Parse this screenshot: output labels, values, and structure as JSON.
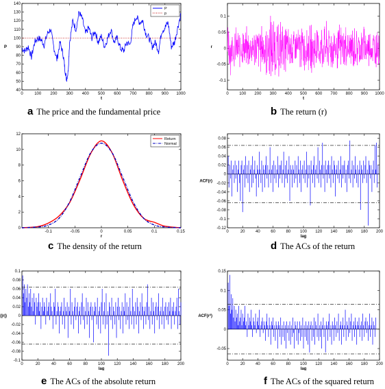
{
  "captions": {
    "a": {
      "letter": "a",
      "text": "The price and the fundamental price"
    },
    "b": {
      "letter": "b",
      "text": "The return (r)"
    },
    "c": {
      "letter": "c",
      "text": "The density of the return"
    },
    "d": {
      "letter": "d",
      "text": "The ACs of the return"
    },
    "e": {
      "letter": "e",
      "text": "The ACs of the absolute return"
    },
    "f": {
      "letter": "f",
      "text": "The ACs of the squared return"
    }
  },
  "chart_data": [
    {
      "id": "a",
      "type": "line",
      "xlabel": "t",
      "ylabel": "P",
      "xlim": [
        0,
        1000
      ],
      "ylim": [
        40,
        140
      ],
      "xticks": [
        "0",
        "100",
        "200",
        "300",
        "400",
        "500",
        "600",
        "700",
        "800",
        "900",
        "1000"
      ],
      "yticks": [
        "40",
        "50",
        "60",
        "70",
        "80",
        "90",
        "100",
        "110",
        "120",
        "130",
        "140"
      ],
      "legend": {
        "position": "top-right",
        "entries": [
          "P",
          "p"
        ]
      },
      "series": [
        {
          "name": "P",
          "style": "solid",
          "color": "#0000ff",
          "x": [
            0,
            20,
            40,
            60,
            80,
            100,
            120,
            140,
            160,
            180,
            200,
            220,
            240,
            260,
            270,
            280,
            290,
            300,
            320,
            340,
            360,
            380,
            400,
            420,
            440,
            460,
            480,
            500,
            520,
            540,
            560,
            580,
            600,
            620,
            640,
            660,
            680,
            700,
            720,
            740,
            760,
            780,
            800,
            820,
            840,
            860,
            880,
            900,
            920,
            940,
            960,
            980,
            1000
          ],
          "y": [
            88,
            85,
            90,
            78,
            95,
            100,
            98,
            92,
            105,
            110,
            90,
            75,
            95,
            80,
            65,
            52,
            60,
            95,
            120,
            110,
            130,
            122,
            105,
            112,
            100,
            108,
            95,
            102,
            90,
            100,
            110,
            95,
            100,
            88,
            85,
            95,
            92,
            115,
            125,
            118,
            120,
            105,
            100,
            90,
            95,
            85,
            108,
            112,
            118,
            90,
            95,
            112,
            128
          ]
        },
        {
          "name": "p",
          "style": "dotted",
          "color": "#c00000",
          "x": [
            0,
            1000
          ],
          "y": [
            100,
            100
          ]
        }
      ]
    },
    {
      "id": "b",
      "type": "line",
      "xlabel": "t",
      "ylabel": "r",
      "xlim": [
        0,
        1000
      ],
      "ylim": [
        -0.13,
        0.14
      ],
      "xticks": [
        "0",
        "100",
        "200",
        "300",
        "400",
        "500",
        "600",
        "700",
        "800",
        "900",
        "1000"
      ],
      "yticks": [
        "-0.1",
        "-0.05",
        "0",
        "0.05",
        "0.1"
      ],
      "series": [
        {
          "name": "",
          "color": "#ff00ff",
          "amplitude_envelope": {
            "x": [
              0,
              100,
              200,
              250,
              300,
              350,
              400,
              500,
              600,
              700,
              800,
              900,
              1000
            ],
            "pos": [
              0.08,
              0.07,
              0.08,
              0.1,
              0.13,
              0.1,
              0.08,
              0.08,
              0.09,
              0.09,
              0.08,
              0.08,
              0.07
            ],
            "neg": [
              -0.09,
              -0.07,
              -0.08,
              -0.1,
              -0.12,
              -0.09,
              -0.08,
              -0.08,
              -0.09,
              -0.08,
              -0.08,
              -0.07,
              -0.07
            ]
          }
        }
      ]
    },
    {
      "id": "c",
      "type": "line",
      "xlabel": "r",
      "ylabel": "",
      "xlim": [
        -0.15,
        0.15
      ],
      "ylim": [
        0,
        12
      ],
      "xticks": [
        "-0.1",
        "-0.05",
        "0",
        "0.05",
        "0.1",
        "0.15"
      ],
      "yticks": [
        "0",
        "2",
        "4",
        "6",
        "8",
        "10",
        "12"
      ],
      "legend": {
        "position": "top-right",
        "entries": [
          "Return",
          "Normal"
        ]
      },
      "series": [
        {
          "name": "Return",
          "style": "solid",
          "color": "#ff0000",
          "x": [
            -0.15,
            -0.12,
            -0.1,
            -0.08,
            -0.06,
            -0.04,
            -0.02,
            0,
            0.02,
            0.04,
            0.06,
            0.08,
            0.1,
            0.12,
            0.15
          ],
          "y": [
            0,
            0.15,
            0.6,
            1.5,
            3.2,
            6.2,
            9.5,
            11.1,
            9.6,
            6.1,
            3.0,
            1.2,
            0.7,
            0.2,
            0
          ]
        },
        {
          "name": "Normal",
          "style": "dashdot",
          "color": "#0000c0",
          "x": [
            -0.15,
            -0.12,
            -0.1,
            -0.08,
            -0.06,
            -0.04,
            -0.02,
            0,
            0.02,
            0.04,
            0.06,
            0.08,
            0.1,
            0.12,
            0.15
          ],
          "y": [
            0,
            0.1,
            0.35,
            1.2,
            3.3,
            6.5,
            9.6,
            10.8,
            9.6,
            6.5,
            3.3,
            1.2,
            0.35,
            0.1,
            0
          ]
        }
      ]
    },
    {
      "id": "d",
      "type": "bar",
      "xlabel": "lag",
      "ylabel": "ACF(r)",
      "xlim": [
        0,
        200
      ],
      "ylim": [
        -0.12,
        0.09
      ],
      "xticks": [
        "0",
        "20",
        "40",
        "60",
        "80",
        "100",
        "120",
        "140",
        "160",
        "180",
        "200"
      ],
      "yticks": [
        "-0.12",
        "-0.1",
        "-0.08",
        "-0.06",
        "-0.04",
        "-0.02",
        "0",
        "0.02",
        "0.04",
        "0.06",
        "0.08"
      ],
      "confidence_bounds": [
        0.064,
        -0.064
      ],
      "values": [
        0.04,
        -0.03,
        0.02,
        -0.01,
        0.03,
        -0.05,
        0.01,
        0.02,
        -0.02,
        0.03,
        -0.01,
        0.02,
        -0.04,
        0.01,
        0.03,
        -0.02,
        -0.06,
        0.02,
        0.03,
        -0.085,
        0.01,
        0.02,
        -0.03,
        0.04,
        -0.01,
        0.02,
        -0.02,
        0.03,
        -0.04,
        0.01,
        0.02,
        -0.03,
        0.04,
        -0.02,
        0.01,
        0.03,
        -0.01,
        -0.05,
        0.02,
        0.01,
        -0.03,
        0.05,
        0.01,
        -0.02,
        0.03,
        -0.04,
        0.02,
        0.01,
        -0.03,
        0.02,
        0.04,
        -0.01,
        0.02,
        -0.03,
        0.01,
        0.06,
        -0.02,
        0.01,
        0.02,
        -0.04,
        0.03,
        -0.01,
        0.02,
        -0.02,
        0.01,
        0.04,
        -0.03,
        0.02,
        -0.01,
        0.02,
        0.03,
        -0.02,
        0.01,
        0.05,
        -0.03,
        0.02,
        -0.01,
        0.03,
        -0.02,
        0.01,
        0.04,
        -0.06,
        0.02,
        0.01,
        -0.03,
        0.02,
        0.01,
        -0.02,
        0.03,
        -0.01,
        0.02,
        -0.03,
        0.04,
        0.01,
        -0.02,
        0.03,
        -0.04,
        0.01,
        0.02,
        -0.01,
        0.03,
        -0.02,
        0.01,
        0.05,
        -0.03,
        0.02,
        -0.01,
        0.02,
        -0.07,
        0.03,
        0.01,
        -0.02,
        0.02,
        0.04,
        -0.03,
        0.01,
        0.02,
        -0.01,
        0.06,
        -0.02,
        0.03,
        0.01,
        -0.03,
        0.02,
        0.07,
        -0.01,
        0.02,
        -0.04,
        0.03,
        0.01,
        -0.02,
        0.02,
        0.03,
        -0.01,
        0.02,
        -0.03,
        0.04,
        0.01,
        -0.02,
        0.03,
        0.02,
        -0.05,
        0.01,
        0.02,
        -0.01,
        0.03,
        -0.02,
        0.01,
        0.04,
        -0.03,
        0.02,
        -0.01,
        0.02,
        0.03,
        -0.02,
        0.01,
        -0.04,
        0.02,
        0.03,
        -0.01,
        0.075,
        -0.02,
        0.01,
        0.03,
        -0.03,
        0.02,
        -0.01,
        0.04,
        0.01,
        -0.02,
        0.02,
        -0.03,
        0.01,
        0.03,
        -0.08,
        0.02,
        0.01,
        -0.02,
        0.03,
        -0.01,
        0.02,
        0.04,
        -0.02,
        0.01,
        -0.115,
        0.03,
        0.02,
        -0.01,
        0.02,
        -0.04,
        0.01,
        0.03,
        -0.02,
        0.065,
        0.01,
        0.07,
        -0.03,
        0.02
      ]
    },
    {
      "id": "e",
      "type": "bar",
      "xlabel": "lag",
      "ylabel": "ACF(|r|)",
      "xlim": [
        0,
        200
      ],
      "ylim": [
        -0.1,
        0.1
      ],
      "xticks": [
        "0",
        "20",
        "40",
        "60",
        "80",
        "100",
        "120",
        "140",
        "160",
        "180",
        "200"
      ],
      "yticks": [
        "-0.1",
        "-0.08",
        "-0.06",
        "-0.04",
        "-0.02",
        "0",
        "0.02",
        "0.04",
        "0.06",
        "0.08",
        "0.1"
      ],
      "confidence_bounds": [
        0.064,
        -0.064
      ],
      "values": [
        0.09,
        0.05,
        0.07,
        0.03,
        0.06,
        0.04,
        0.07,
        0.02,
        0.05,
        0.03,
        0.06,
        0.02,
        0.04,
        0.01,
        0.05,
        0.03,
        -0.02,
        0.04,
        0.02,
        0.03,
        0.05,
        0.01,
        0.03,
        -0.03,
        0.02,
        0.04,
        0.01,
        0.03,
        0.02,
        -0.02,
        0.04,
        0.01,
        0.02,
        0.03,
        -0.01,
        0.05,
        0.02,
        0.01,
        -0.03,
        0.03,
        0.02,
        0.06,
        -0.02,
        0.01,
        0.03,
        0.02,
        -0.04,
        0.01,
        0.02,
        0.03,
        -0.02,
        0.01,
        0.04,
        -0.03,
        0.02,
        0.01,
        0.03,
        -0.05,
        0.02,
        0.01,
        0.06,
        -0.02,
        0.03,
        0.01,
        -0.03,
        0.02,
        0.04,
        -0.01,
        0.02,
        0.03,
        -0.04,
        0.01,
        0.02,
        -0.02,
        0.03,
        0.05,
        -0.01,
        0.02,
        -0.03,
        0.01,
        0.04,
        -0.02,
        0.03,
        0.01,
        -0.05,
        0.02,
        0.03,
        -0.01,
        0.02,
        -0.06,
        0.01,
        0.03,
        0.02,
        -0.02,
        0.04,
        -0.03,
        0.01,
        0.02,
        -0.04,
        0.03,
        0.06,
        -0.02,
        0.01,
        0.03,
        -0.03,
        0.05,
        -0.02,
        0.01,
        -0.09,
        0.03,
        0.02,
        -0.01,
        0.04,
        -0.03,
        0.02,
        0.01,
        -0.02,
        0.03,
        -0.05,
        0.02,
        0.04,
        -0.01,
        0.02,
        -0.03,
        0.01,
        0.03,
        -0.04,
        0.02,
        0.01,
        0.05,
        -0.02,
        0.03,
        -0.01,
        0.02,
        -0.03,
        0.04,
        0.01,
        -0.02,
        0.06,
        0.02,
        -0.03,
        0.01,
        0.03,
        -0.02,
        0.04,
        0.02,
        -0.04,
        0.01,
        0.03,
        -0.01,
        0.05,
        0.02,
        -0.03,
        0.01,
        0.02,
        -0.02,
        0.03,
        0.07,
        -0.01,
        0.02,
        -0.03,
        0.01,
        0.04,
        -0.02,
        0.03,
        0.01,
        -0.04,
        0.02,
        0.03,
        -0.01,
        0.02,
        0.05,
        -0.03,
        0.01,
        0.02,
        -0.02,
        0.04,
        0.01,
        -0.03,
        0.02,
        0.03,
        -0.01,
        0.02,
        -0.02,
        0.03,
        0.01,
        0.04,
        -0.03,
        0.02,
        0.01,
        0.03,
        -0.02,
        0.01,
        0.02,
        0.04,
        -0.03,
        0.06,
        0.01,
        -0.02,
        0.03
      ]
    },
    {
      "id": "f",
      "type": "bar",
      "xlabel": "lag",
      "ylabel": "ACF(r²)",
      "xlim": [
        0,
        200
      ],
      "ylim": [
        -0.08,
        0.15
      ],
      "xticks": [
        "0",
        "20",
        "40",
        "60",
        "80",
        "100",
        "120",
        "140",
        "160",
        "180",
        "200"
      ],
      "yticks": [
        "-0.05",
        "0",
        "0.05",
        "0.1",
        "0.15"
      ],
      "confidence_bounds": [
        0.064,
        -0.064
      ],
      "values": [
        0.12,
        0.06,
        0.14,
        0.04,
        0.09,
        0.05,
        0.08,
        0.03,
        0.06,
        0.02,
        0.05,
        0.03,
        0.04,
        0.01,
        0.06,
        0.02,
        0.03,
        0.05,
        0.01,
        0.04,
        0.02,
        0.03,
        0.06,
        0.01,
        0.02,
        -0.02,
        0.04,
        0.01,
        0.03,
        0.02,
        0.05,
        0.01,
        -0.02,
        0.03,
        0.02,
        0.01,
        0.04,
        -0.01,
        0.02,
        0.03,
        0.01,
        0.05,
        -0.02,
        0.01,
        0.02,
        0.03,
        -0.01,
        0.02,
        0.01,
        -0.03,
        0.02,
        0.04,
        0.01,
        -0.02,
        0.03,
        0.01,
        -0.04,
        0.02,
        0.01,
        0.03,
        -0.02,
        0.01,
        -0.03,
        0.02,
        0.01,
        -0.05,
        0.02,
        0.01,
        -0.02,
        0.03,
        -0.04,
        0.01,
        -0.02,
        0.02,
        -0.03,
        0.01,
        -0.05,
        0.02,
        -0.01,
        0.01,
        -0.03,
        0.02,
        -0.04,
        0.01,
        -0.02,
        0.03,
        -0.01,
        -0.05,
        0.02,
        0.01,
        -0.03,
        0.02,
        -0.04,
        -0.01,
        0.02,
        -0.03,
        0.01,
        -0.02,
        0.03,
        -0.05,
        0.01,
        -0.02,
        0.02,
        -0.03,
        0.01,
        -0.04,
        0.02,
        -0.06,
        0.01,
        0.02,
        -0.03,
        0.01,
        -0.02,
        0.03,
        -0.04,
        0.02,
        0.01,
        -0.02,
        0.04,
        -0.03,
        0.01,
        -0.02,
        0.02,
        -0.05,
        0.01,
        0.03,
        -0.02,
        0.01,
        -0.06,
        0.02,
        0.01,
        -0.03,
        0.02,
        0.04,
        -0.02,
        0.01,
        -0.04,
        0.02,
        0.01,
        -0.03,
        0.03,
        0.01,
        -0.02,
        0.02,
        -0.01,
        0.04,
        -0.03,
        0.01,
        0.02,
        -0.04,
        0.01,
        0.03,
        -0.02,
        0.01,
        0.05,
        -0.03,
        0.02,
        0.01,
        -0.02,
        0.03,
        -0.01,
        0.02,
        0.04,
        -0.03,
        0.01,
        0.02,
        -0.02,
        0.03,
        0.01,
        -0.04,
        0.02,
        0.01,
        0.03,
        -0.02,
        0.01,
        0.02,
        -0.03,
        0.04,
        0.01,
        -0.02,
        0.02,
        0.03,
        -0.01,
        0.02,
        -0.03,
        0.01,
        0.04,
        -0.02,
        0.01,
        0.03,
        -0.04,
        0.02,
        0.01,
        -0.02,
        0.03
      ]
    }
  ]
}
